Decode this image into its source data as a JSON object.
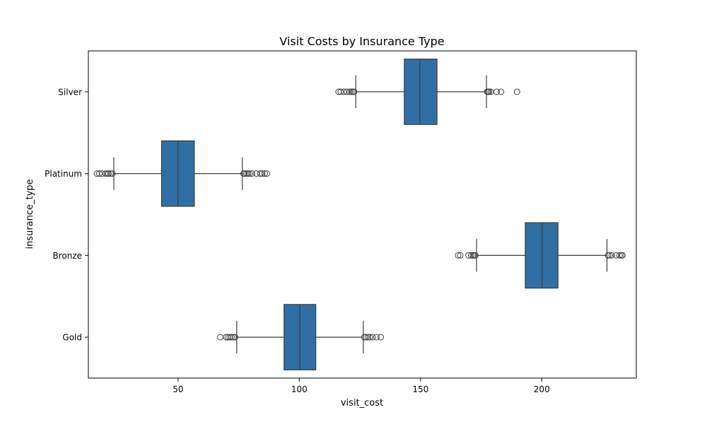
{
  "chart_data": {
    "type": "boxplot",
    "orientation": "horizontal",
    "title": "Visit Costs by Insurance Type",
    "xlabel": "visit_cost",
    "ylabel": "insurance_type",
    "xlim": [
      13,
      239
    ],
    "xticks": [
      50,
      100,
      150,
      200
    ],
    "grid": false,
    "box_color": "#2f6fa6",
    "line_color": "#3d3d3d",
    "categories": [
      "Silver",
      "Platinum",
      "Bronze",
      "Gold"
    ],
    "boxes": [
      {
        "category": "Silver",
        "whisker_low": 123.3,
        "q1": 143.3,
        "median": 149.7,
        "q3": 156.8,
        "whisker_high": 177.2,
        "outliers": [
          116.2,
          117.1,
          118.4,
          119.6,
          120.8,
          121.5,
          122.2,
          122.6,
          177.5,
          177.8,
          178.3,
          179.0,
          181.4,
          183.2,
          189.8
        ]
      },
      {
        "category": "Platinum",
        "whisker_low": 23.5,
        "q1": 43.2,
        "median": 50.0,
        "q3": 56.7,
        "whisker_high": 76.5,
        "outliers": [
          16.5,
          17.5,
          18.6,
          20.1,
          20.8,
          21.3,
          22.1,
          22.9,
          77.0,
          77.4,
          78.1,
          78.8,
          79.5,
          80.5,
          82.3,
          83.9,
          84.7,
          85.7,
          86.6
        ]
      },
      {
        "category": "Bronze",
        "whisker_low": 173.1,
        "q1": 193.2,
        "median": 200.1,
        "q3": 206.7,
        "whisker_high": 226.9,
        "outliers": [
          165.5,
          166.4,
          169.8,
          170.9,
          171.6,
          172.2,
          172.6,
          227.3,
          228.0,
          228.9,
          230.7,
          232.1,
          232.8,
          233.3
        ]
      },
      {
        "category": "Gold",
        "whisker_low": 74.2,
        "q1": 93.7,
        "median": 100.2,
        "q3": 106.8,
        "whisker_high": 126.4,
        "outliers": [
          67.4,
          69.8,
          70.5,
          71.3,
          72.0,
          72.8,
          73.5,
          126.8,
          127.5,
          128.3,
          129.1,
          130.2,
          131.8,
          133.6
        ]
      }
    ]
  }
}
